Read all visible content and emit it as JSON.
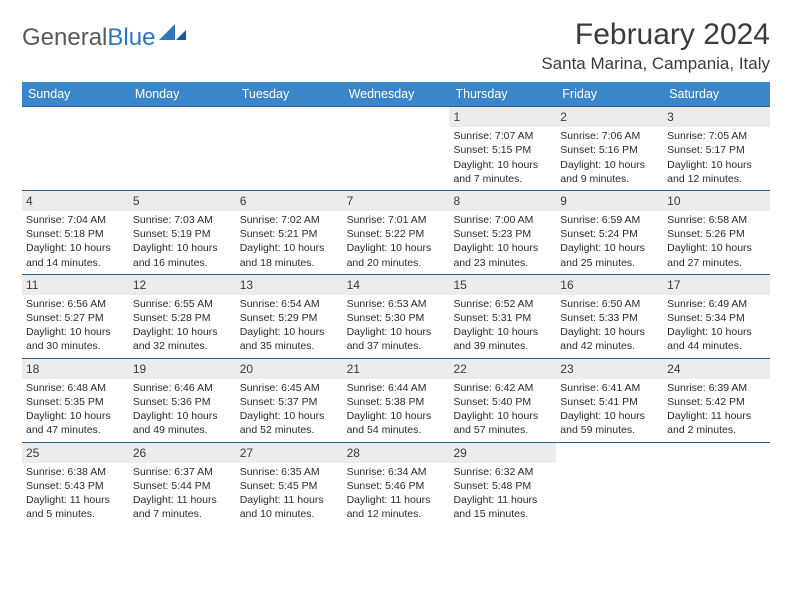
{
  "brand": {
    "part1": "General",
    "part2": "Blue"
  },
  "title": "February 2024",
  "location": "Santa Marina, Campania, Italy",
  "colors": {
    "header_bg": "#3a86c8",
    "header_text": "#ffffff",
    "rule": "#2f5f8f",
    "daynum_bg": "#ececec",
    "text": "#2b2b2b",
    "logo_gray": "#59595b",
    "logo_blue": "#2f77bb"
  },
  "daysOfWeek": [
    "Sunday",
    "Monday",
    "Tuesday",
    "Wednesday",
    "Thursday",
    "Friday",
    "Saturday"
  ],
  "weeks": [
    [
      {
        "n": "",
        "lines": []
      },
      {
        "n": "",
        "lines": []
      },
      {
        "n": "",
        "lines": []
      },
      {
        "n": "",
        "lines": []
      },
      {
        "n": "1",
        "lines": [
          "Sunrise: 7:07 AM",
          "Sunset: 5:15 PM",
          "Daylight: 10 hours and 7 minutes."
        ]
      },
      {
        "n": "2",
        "lines": [
          "Sunrise: 7:06 AM",
          "Sunset: 5:16 PM",
          "Daylight: 10 hours and 9 minutes."
        ]
      },
      {
        "n": "3",
        "lines": [
          "Sunrise: 7:05 AM",
          "Sunset: 5:17 PM",
          "Daylight: 10 hours and 12 minutes."
        ]
      }
    ],
    [
      {
        "n": "4",
        "lines": [
          "Sunrise: 7:04 AM",
          "Sunset: 5:18 PM",
          "Daylight: 10 hours and 14 minutes."
        ]
      },
      {
        "n": "5",
        "lines": [
          "Sunrise: 7:03 AM",
          "Sunset: 5:19 PM",
          "Daylight: 10 hours and 16 minutes."
        ]
      },
      {
        "n": "6",
        "lines": [
          "Sunrise: 7:02 AM",
          "Sunset: 5:21 PM",
          "Daylight: 10 hours and 18 minutes."
        ]
      },
      {
        "n": "7",
        "lines": [
          "Sunrise: 7:01 AM",
          "Sunset: 5:22 PM",
          "Daylight: 10 hours and 20 minutes."
        ]
      },
      {
        "n": "8",
        "lines": [
          "Sunrise: 7:00 AM",
          "Sunset: 5:23 PM",
          "Daylight: 10 hours and 23 minutes."
        ]
      },
      {
        "n": "9",
        "lines": [
          "Sunrise: 6:59 AM",
          "Sunset: 5:24 PM",
          "Daylight: 10 hours and 25 minutes."
        ]
      },
      {
        "n": "10",
        "lines": [
          "Sunrise: 6:58 AM",
          "Sunset: 5:26 PM",
          "Daylight: 10 hours and 27 minutes."
        ]
      }
    ],
    [
      {
        "n": "11",
        "lines": [
          "Sunrise: 6:56 AM",
          "Sunset: 5:27 PM",
          "Daylight: 10 hours and 30 minutes."
        ]
      },
      {
        "n": "12",
        "lines": [
          "Sunrise: 6:55 AM",
          "Sunset: 5:28 PM",
          "Daylight: 10 hours and 32 minutes."
        ]
      },
      {
        "n": "13",
        "lines": [
          "Sunrise: 6:54 AM",
          "Sunset: 5:29 PM",
          "Daylight: 10 hours and 35 minutes."
        ]
      },
      {
        "n": "14",
        "lines": [
          "Sunrise: 6:53 AM",
          "Sunset: 5:30 PM",
          "Daylight: 10 hours and 37 minutes."
        ]
      },
      {
        "n": "15",
        "lines": [
          "Sunrise: 6:52 AM",
          "Sunset: 5:31 PM",
          "Daylight: 10 hours and 39 minutes."
        ]
      },
      {
        "n": "16",
        "lines": [
          "Sunrise: 6:50 AM",
          "Sunset: 5:33 PM",
          "Daylight: 10 hours and 42 minutes."
        ]
      },
      {
        "n": "17",
        "lines": [
          "Sunrise: 6:49 AM",
          "Sunset: 5:34 PM",
          "Daylight: 10 hours and 44 minutes."
        ]
      }
    ],
    [
      {
        "n": "18",
        "lines": [
          "Sunrise: 6:48 AM",
          "Sunset: 5:35 PM",
          "Daylight: 10 hours and 47 minutes."
        ]
      },
      {
        "n": "19",
        "lines": [
          "Sunrise: 6:46 AM",
          "Sunset: 5:36 PM",
          "Daylight: 10 hours and 49 minutes."
        ]
      },
      {
        "n": "20",
        "lines": [
          "Sunrise: 6:45 AM",
          "Sunset: 5:37 PM",
          "Daylight: 10 hours and 52 minutes."
        ]
      },
      {
        "n": "21",
        "lines": [
          "Sunrise: 6:44 AM",
          "Sunset: 5:38 PM",
          "Daylight: 10 hours and 54 minutes."
        ]
      },
      {
        "n": "22",
        "lines": [
          "Sunrise: 6:42 AM",
          "Sunset: 5:40 PM",
          "Daylight: 10 hours and 57 minutes."
        ]
      },
      {
        "n": "23",
        "lines": [
          "Sunrise: 6:41 AM",
          "Sunset: 5:41 PM",
          "Daylight: 10 hours and 59 minutes."
        ]
      },
      {
        "n": "24",
        "lines": [
          "Sunrise: 6:39 AM",
          "Sunset: 5:42 PM",
          "Daylight: 11 hours and 2 minutes."
        ]
      }
    ],
    [
      {
        "n": "25",
        "lines": [
          "Sunrise: 6:38 AM",
          "Sunset: 5:43 PM",
          "Daylight: 11 hours and 5 minutes."
        ]
      },
      {
        "n": "26",
        "lines": [
          "Sunrise: 6:37 AM",
          "Sunset: 5:44 PM",
          "Daylight: 11 hours and 7 minutes."
        ]
      },
      {
        "n": "27",
        "lines": [
          "Sunrise: 6:35 AM",
          "Sunset: 5:45 PM",
          "Daylight: 11 hours and 10 minutes."
        ]
      },
      {
        "n": "28",
        "lines": [
          "Sunrise: 6:34 AM",
          "Sunset: 5:46 PM",
          "Daylight: 11 hours and 12 minutes."
        ]
      },
      {
        "n": "29",
        "lines": [
          "Sunrise: 6:32 AM",
          "Sunset: 5:48 PM",
          "Daylight: 11 hours and 15 minutes."
        ]
      },
      {
        "n": "",
        "lines": []
      },
      {
        "n": "",
        "lines": []
      }
    ]
  ]
}
